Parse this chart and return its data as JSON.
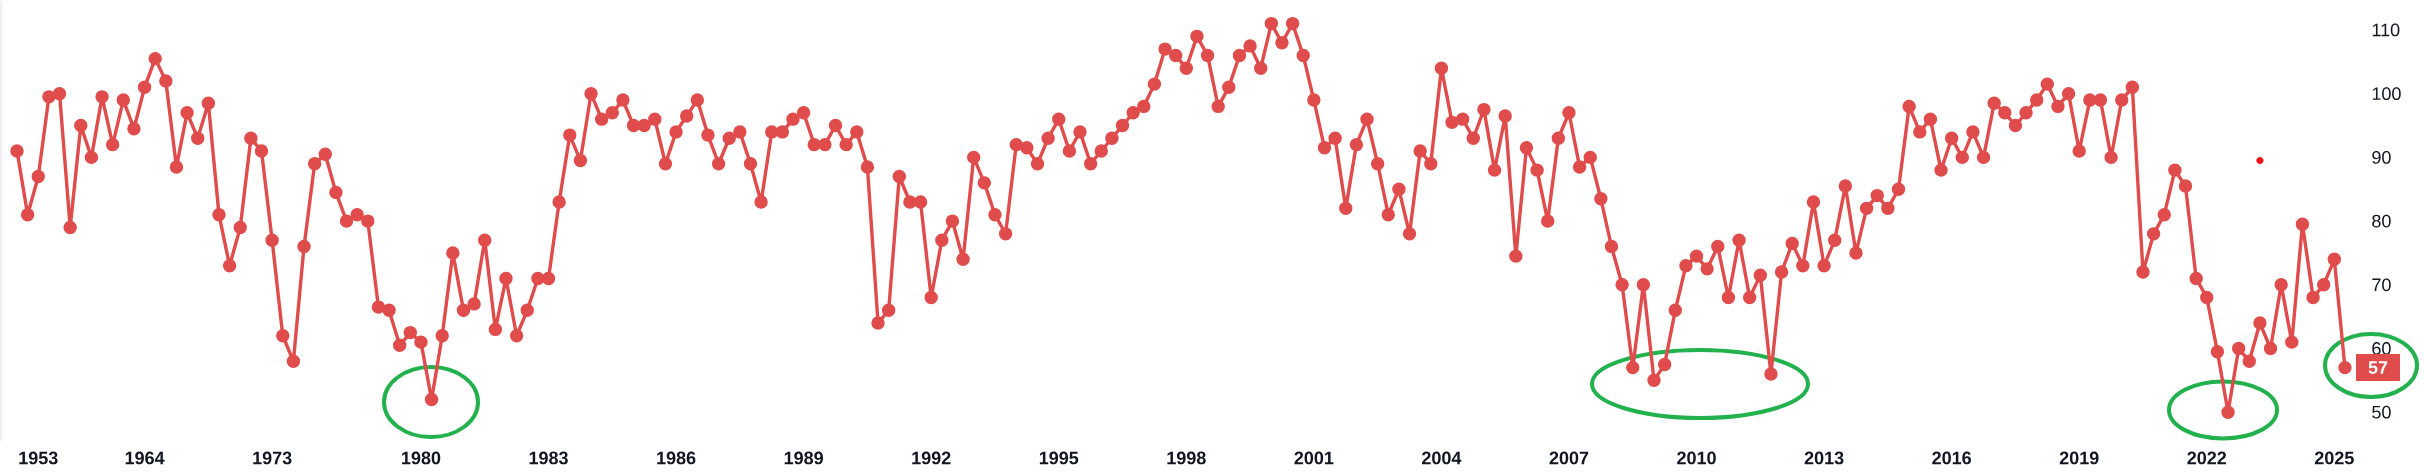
{
  "chart_data": {
    "type": "line",
    "categories": [
      null,
      null,
      "1953",
      null,
      null,
      null,
      null,
      null,
      null,
      null,
      null,
      null,
      "1964",
      null,
      null,
      null,
      null,
      null,
      null,
      null,
      null,
      null,
      null,
      null,
      "1973",
      null,
      null,
      null,
      null,
      null,
      null,
      null,
      null,
      null,
      null,
      null,
      null,
      null,
      "1980",
      null,
      null,
      null,
      null,
      null,
      null,
      null,
      null,
      null,
      null,
      null,
      "1983",
      null,
      null,
      null,
      null,
      null,
      null,
      null,
      null,
      null,
      null,
      null,
      "1986",
      null,
      null,
      null,
      null,
      null,
      null,
      null,
      null,
      null,
      null,
      null,
      "1989",
      null,
      null,
      null,
      null,
      null,
      null,
      null,
      null,
      null,
      null,
      null,
      "1992",
      null,
      null,
      null,
      null,
      null,
      null,
      null,
      null,
      null,
      null,
      null,
      "1995",
      null,
      null,
      null,
      null,
      null,
      null,
      null,
      null,
      null,
      null,
      null,
      "1998",
      null,
      null,
      null,
      null,
      null,
      null,
      null,
      null,
      null,
      null,
      null,
      "2001",
      null,
      null,
      null,
      null,
      null,
      null,
      null,
      null,
      null,
      null,
      null,
      "2004",
      null,
      null,
      null,
      null,
      null,
      null,
      null,
      null,
      null,
      null,
      null,
      "2007",
      null,
      null,
      null,
      null,
      null,
      null,
      null,
      null,
      null,
      null,
      null,
      "2010",
      null,
      null,
      null,
      null,
      null,
      null,
      null,
      null,
      null,
      null,
      null,
      "2013",
      null,
      null,
      null,
      null,
      null,
      null,
      null,
      null,
      null,
      null,
      null,
      "2016",
      null,
      null,
      null,
      null,
      null,
      null,
      null,
      null,
      null,
      null,
      null,
      "2019",
      null,
      null,
      null,
      null,
      null,
      null,
      null,
      null,
      null,
      null,
      null,
      "2022",
      null,
      null,
      null,
      null,
      null,
      null,
      null,
      null,
      null,
      null,
      null,
      "2025",
      null
    ],
    "series": [
      {
        "color": "#e04c4c",
        "values": [
          91,
          81,
          87,
          99.5,
          100,
          79,
          95,
          90,
          99.5,
          92,
          99,
          94.5,
          101,
          105.5,
          102,
          88.5,
          97,
          93,
          98.5,
          81,
          73,
          79,
          93,
          91,
          77,
          62,
          58,
          76,
          89,
          90.5,
          84.5,
          80,
          81,
          80,
          66.5,
          66,
          60.5,
          62.5,
          61,
          52,
          62,
          75,
          66,
          67,
          77,
          63,
          71,
          62,
          66,
          71,
          71,
          83,
          93.5,
          89.5,
          100,
          96,
          97,
          99,
          95,
          95,
          96,
          89,
          94,
          96.5,
          99,
          93.5,
          89,
          93,
          94,
          89,
          83,
          94,
          94,
          96,
          97,
          92,
          92,
          95,
          92,
          94,
          88.5,
          64,
          66,
          87,
          83,
          83,
          68,
          77,
          80,
          74,
          90,
          86,
          81,
          78,
          92,
          91.5,
          89,
          93,
          96,
          91,
          94,
          89,
          91,
          93,
          95,
          97,
          98,
          101.5,
          107,
          106,
          104,
          109,
          106,
          98,
          101,
          106,
          107.5,
          104,
          111,
          108,
          111,
          106,
          99,
          91.5,
          93,
          82,
          92,
          96,
          89,
          81,
          85,
          78,
          91,
          89,
          104,
          95.5,
          96,
          93,
          97.5,
          88,
          96.5,
          74.5,
          91.5,
          88,
          80,
          93,
          97,
          88.5,
          90,
          83.5,
          76,
          70,
          57,
          70,
          55,
          57.5,
          66,
          73,
          74.5,
          72.5,
          76,
          68,
          77,
          68,
          71.5,
          56,
          72,
          76.5,
          73,
          83,
          73,
          77,
          85.5,
          75,
          82,
          84,
          82,
          85,
          98,
          94,
          96,
          88,
          93,
          90,
          94,
          90,
          98.5,
          97,
          95,
          97,
          99,
          101.5,
          98,
          100,
          91,
          99,
          99,
          90,
          99,
          101,
          72,
          78,
          81,
          88,
          85.5,
          71,
          68,
          59.5,
          50,
          60,
          58,
          64,
          60,
          70,
          61,
          79.5,
          68,
          70,
          74,
          57
        ],
        "value_labels": [
          null,
          null,
          null,
          null,
          null,
          null,
          null,
          null,
          null,
          null,
          null,
          null,
          null,
          null,
          null,
          null,
          null,
          null,
          null,
          null,
          null,
          null,
          null,
          null,
          null,
          null,
          null,
          null,
          null,
          null,
          null,
          null,
          null,
          null,
          null,
          null,
          null,
          null,
          null,
          null,
          null,
          null,
          null,
          null,
          null,
          null,
          null,
          null,
          null,
          null,
          null,
          null,
          null,
          null,
          null,
          null,
          null,
          null,
          null,
          null,
          null,
          null,
          null,
          null,
          null,
          null,
          null,
          null,
          null,
          null,
          null,
          null,
          null,
          null,
          null,
          null,
          null,
          null,
          null,
          null,
          null,
          null,
          null,
          null,
          null,
          null,
          null,
          null,
          null,
          null,
          null,
          null,
          null,
          null,
          null,
          null,
          null,
          null,
          null,
          null,
          null,
          null,
          null,
          null,
          null,
          null,
          null,
          null,
          null,
          null,
          null,
          null,
          null,
          null,
          null,
          null,
          null,
          null,
          null,
          null,
          null,
          null,
          null,
          null,
          null,
          null,
          null,
          null,
          null,
          null,
          null,
          null,
          null,
          null,
          null,
          null,
          null,
          null,
          null,
          null,
          null,
          null,
          null,
          null,
          null,
          null,
          null,
          null,
          null,
          null,
          null,
          null,
          null,
          null,
          null,
          null,
          null,
          null,
          null,
          null,
          null,
          null,
          null,
          null,
          null,
          null,
          null,
          null,
          null,
          null,
          null,
          null,
          null,
          null,
          null,
          null,
          null,
          null,
          null,
          null,
          null,
          null,
          null,
          null,
          null,
          null,
          null,
          null,
          null,
          null,
          null,
          null,
          null,
          null,
          null,
          null,
          null,
          null,
          null,
          null,
          null,
          null,
          null,
          null,
          null,
          null,
          null,
          null,
          null,
          null,
          null,
          null,
          null,
          null,
          null,
          null,
          null,
          null,
          null,
          "57"
        ]
      },
      {
        "type": "scatter",
        "color": "#ee1111",
        "values": [
          null,
          null,
          null,
          null,
          null,
          null,
          null,
          null,
          null,
          null,
          null,
          null,
          null,
          null,
          null,
          null,
          null,
          null,
          null,
          null,
          null,
          null,
          null,
          null,
          null,
          null,
          null,
          null,
          null,
          null,
          null,
          null,
          null,
          null,
          null,
          null,
          null,
          null,
          null,
          null,
          null,
          null,
          null,
          null,
          null,
          null,
          null,
          null,
          null,
          null,
          null,
          null,
          null,
          null,
          null,
          null,
          null,
          null,
          null,
          null,
          null,
          null,
          null,
          null,
          null,
          null,
          null,
          null,
          null,
          null,
          null,
          null,
          null,
          null,
          null,
          null,
          null,
          null,
          null,
          null,
          null,
          null,
          null,
          null,
          null,
          null,
          null,
          null,
          null,
          null,
          null,
          null,
          null,
          null,
          null,
          null,
          null,
          null,
          null,
          null,
          null,
          null,
          null,
          null,
          null,
          null,
          null,
          null,
          null,
          null,
          null,
          null,
          null,
          null,
          null,
          null,
          null,
          null,
          null,
          null,
          null,
          null,
          null,
          null,
          null,
          null,
          null,
          null,
          null,
          null,
          null,
          null,
          null,
          null,
          null,
          null,
          null,
          null,
          null,
          null,
          null,
          null,
          null,
          null,
          null,
          null,
          null,
          null,
          null,
          null,
          null,
          null,
          null,
          null,
          null,
          null,
          null,
          null,
          null,
          null,
          null,
          null,
          null,
          null,
          null,
          null,
          null,
          null,
          null,
          null,
          null,
          null,
          null,
          null,
          null,
          null,
          null,
          null,
          null,
          null,
          null,
          null,
          null,
          null,
          null,
          null,
          null,
          null,
          null,
          null,
          null,
          null,
          null,
          null,
          null,
          null,
          null,
          null,
          null,
          null,
          null,
          null,
          null,
          null,
          null,
          null,
          null,
          null,
          null,
          null,
          null,
          89.5,
          null,
          null,
          null,
          null,
          null,
          null,
          null,
          null
        ]
      }
    ],
    "ylim": [
      45.5,
      114.5
    ],
    "yticks": [
      50,
      60,
      70,
      80,
      90,
      100,
      110
    ],
    "grid": false,
    "legend": false,
    "marker": "circle",
    "line_style": "solid"
  }
}
